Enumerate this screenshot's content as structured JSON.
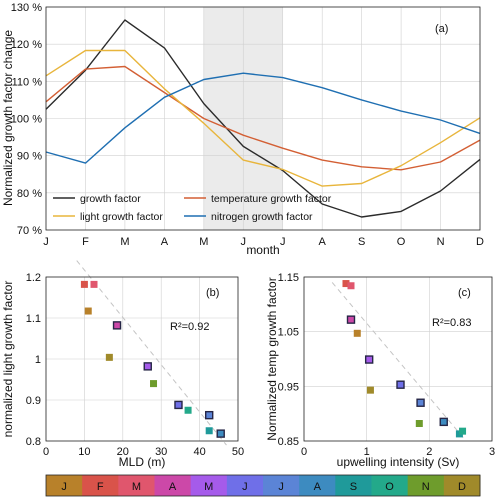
{
  "colors": {
    "grid": "#d0d0d0",
    "shade": "#ebebeb",
    "axis": "#262626",
    "dash": "#c4c4c4"
  },
  "chart_data": [
    {
      "id": "a",
      "type": "line",
      "panel_label": "(a)",
      "xlabel": "month",
      "ylabel": "Normalized growth factor change",
      "categories": [
        "J",
        "F",
        "M",
        "A",
        "M",
        "J",
        "J",
        "A",
        "S",
        "O",
        "N",
        "D"
      ],
      "yticks": [
        "70 %",
        "80 %",
        "90 %",
        "100 %",
        "110 %",
        "120 %",
        "130 %"
      ],
      "ylim": [
        70,
        130
      ],
      "shaded_months": [
        5,
        7
      ],
      "legend_placement": "bottom-left",
      "series": [
        {
          "name": "growth factor",
          "color": "#2b2b2b",
          "values": [
            102.5,
            113,
            126.5,
            119,
            104,
            92.5,
            86,
            77,
            73.5,
            75,
            80.5,
            89
          ]
        },
        {
          "name": "temperature growth factor",
          "color": "#d35f34",
          "values": [
            104.5,
            113.3,
            114,
            107,
            100,
            95.5,
            92,
            88.8,
            87,
            86.2,
            88.3,
            94.2
          ]
        },
        {
          "name": "light growth factor",
          "color": "#e8b53c",
          "values": [
            111.5,
            118.3,
            118.3,
            108,
            98.7,
            88.8,
            86.3,
            81.8,
            82.5,
            87.3,
            93.5,
            100.2
          ]
        },
        {
          "name": "nitrogen growth factor",
          "color": "#1f6fb2",
          "values": [
            91,
            88,
            97.5,
            105.7,
            110.5,
            112.2,
            111,
            108.3,
            105,
            102,
            99.6,
            96
          ]
        }
      ]
    },
    {
      "id": "b",
      "type": "scatter",
      "panel_label": "(b)",
      "xlabel": "MLD (m)",
      "ylabel": "normalized light growth factor",
      "annotation": "R²=0.92",
      "xlim": [
        0,
        50
      ],
      "ylim": [
        0.8,
        1.2
      ],
      "xticks": [
        "0",
        "10",
        "20",
        "30",
        "40",
        "50"
      ],
      "yticks": [
        "0.8",
        "0.9",
        "1",
        "1.1",
        "1.2"
      ],
      "trend": {
        "x0": 8,
        "y0": 1.24,
        "x1": 47,
        "y1": 0.79
      },
      "points": [
        {
          "month": "J",
          "x": 11,
          "y": 1.117,
          "color": "#b8812a",
          "outlined": false
        },
        {
          "month": "F",
          "x": 10,
          "y": 1.182,
          "color": "#d9534a",
          "outlined": false
        },
        {
          "month": "M",
          "x": 12.5,
          "y": 1.182,
          "color": "#e0566d",
          "outlined": false
        },
        {
          "month": "A",
          "x": 18.5,
          "y": 1.082,
          "color": "#cc48a8",
          "outlined": true
        },
        {
          "month": "M",
          "x": 26.5,
          "y": 0.982,
          "color": "#a55bea",
          "outlined": true
        },
        {
          "month": "J",
          "x": 34.5,
          "y": 0.888,
          "color": "#6f6fe8",
          "outlined": true
        },
        {
          "month": "J",
          "x": 42.5,
          "y": 0.863,
          "color": "#5b84d6",
          "outlined": true
        },
        {
          "month": "A",
          "x": 45.5,
          "y": 0.818,
          "color": "#3d8bc0",
          "outlined": true
        },
        {
          "month": "S",
          "x": 42.5,
          "y": 0.825,
          "color": "#1f9a9a",
          "outlined": false
        },
        {
          "month": "O",
          "x": 37,
          "y": 0.875,
          "color": "#23a98a",
          "outlined": false
        },
        {
          "month": "N",
          "x": 28,
          "y": 0.94,
          "color": "#6e9c2c",
          "outlined": false
        },
        {
          "month": "D",
          "x": 16.5,
          "y": 1.004,
          "color": "#a08a2a",
          "outlined": false
        }
      ]
    },
    {
      "id": "c",
      "type": "scatter",
      "panel_label": "(c)",
      "xlabel": "upwelling intensity (Sv)",
      "ylabel": "Normalized temp growth factor",
      "annotation": "R²=0.83",
      "xlim": [
        0,
        3
      ],
      "ylim": [
        0.85,
        1.15
      ],
      "xticks": [
        "0",
        "1",
        "2",
        "3"
      ],
      "yticks": [
        "0.85",
        "0.95",
        "1.05",
        "1.15"
      ],
      "trend": {
        "x0": 0.45,
        "y0": 1.14,
        "x1": 2.55,
        "y1": 0.855
      },
      "points": [
        {
          "month": "J",
          "x": 0.85,
          "y": 1.047,
          "color": "#b8812a",
          "outlined": false
        },
        {
          "month": "F",
          "x": 0.67,
          "y": 1.138,
          "color": "#d9534a",
          "outlined": false
        },
        {
          "month": "M",
          "x": 0.75,
          "y": 1.134,
          "color": "#e0566d",
          "outlined": false
        },
        {
          "month": "A",
          "x": 0.75,
          "y": 1.072,
          "color": "#cc48a8",
          "outlined": true
        },
        {
          "month": "M",
          "x": 1.04,
          "y": 0.999,
          "color": "#a55bea",
          "outlined": true
        },
        {
          "month": "J",
          "x": 1.54,
          "y": 0.953,
          "color": "#6f6fe8",
          "outlined": true
        },
        {
          "month": "J",
          "x": 1.86,
          "y": 0.92,
          "color": "#5b84d6",
          "outlined": true
        },
        {
          "month": "A",
          "x": 2.23,
          "y": 0.885,
          "color": "#3d8bc0",
          "outlined": true
        },
        {
          "month": "S",
          "x": 2.48,
          "y": 0.863,
          "color": "#1f9a9a",
          "outlined": false
        },
        {
          "month": "O",
          "x": 2.53,
          "y": 0.868,
          "color": "#23a98a",
          "outlined": false
        },
        {
          "month": "N",
          "x": 1.84,
          "y": 0.882,
          "color": "#6e9c2c",
          "outlined": false
        },
        {
          "month": "D",
          "x": 1.06,
          "y": 0.943,
          "color": "#a08a2a",
          "outlined": false
        }
      ]
    }
  ],
  "colorbar": {
    "labels": [
      "J",
      "F",
      "M",
      "A",
      "M",
      "J",
      "J",
      "A",
      "S",
      "O",
      "N",
      "D"
    ],
    "colors": [
      "#b8812a",
      "#d9534a",
      "#e0566d",
      "#cc48a8",
      "#a55bea",
      "#6f6fe8",
      "#5b84d6",
      "#3d8bc0",
      "#1f9a9a",
      "#23a98a",
      "#6e9c2c",
      "#a08a2a"
    ]
  }
}
